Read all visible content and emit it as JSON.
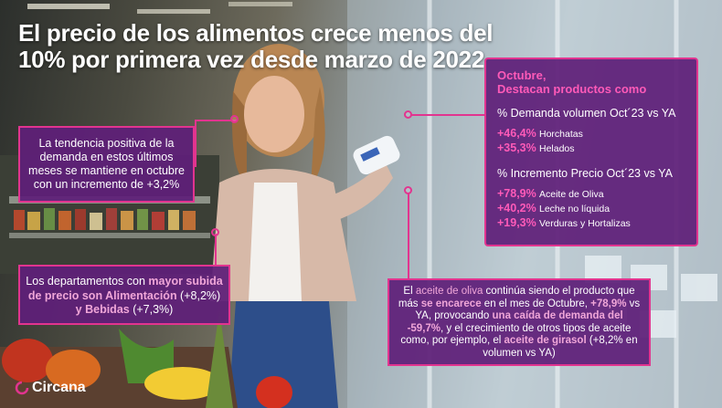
{
  "headline": {
    "line1": "El precio de los alimentos crece menos del",
    "line2": "10% por primera vez desde marzo de 2022"
  },
  "left_box_a": {
    "text": "La tendencia positiva de la demanda en estos últimos meses se mantiene en octubre con un incremento de +3,2%"
  },
  "left_box_b": {
    "prefix": "Los departamentos con ",
    "highlight1": "mayor subida de precio son Alimentación",
    "mid": " (+8,2%) ",
    "highlight2": "y Bebidas",
    "suffix": " (+7,3%)"
  },
  "right_box": {
    "title_line1": "Octubre,",
    "title_line2": "Destacan productos como",
    "section1": "% Demanda volumen Oct´23 vs YA",
    "demand_items": [
      {
        "pct": "+46,4%",
        "label": "Horchatas"
      },
      {
        "pct": "+35,3%",
        "label": "Helados"
      }
    ],
    "section2": "% Incremento Precio Oct´23 vs YA",
    "price_items": [
      {
        "pct": "+78,9%",
        "label": "Aceite de Oliva"
      },
      {
        "pct": "+40,2%",
        "label": "Leche no líquida"
      },
      {
        "pct": "+19,3%",
        "label": "Verduras y Hortalizas"
      }
    ]
  },
  "bottom_box": {
    "p1": "El ",
    "h1": "aceite de oliva",
    "p2": " continúa siendo el producto que más ",
    "h2": "se encarece",
    "p3": " en el mes de Octubre, ",
    "h3": "+78,9%",
    "p4": " vs YA, provocando ",
    "h4": "una caída de demanda del -59,7%",
    "p5": ", y el crecimiento de otros tipos de aceite como, por ejemplo, el ",
    "h5": "aceite de girasol",
    "p6": " (+8,2% en volumen vs YA)"
  },
  "brand": {
    "name": "Circana"
  },
  "colors": {
    "box_bg": "#5f1f78",
    "accent_pink": "#e2348f",
    "highlight_pink": "#ff5ab8"
  }
}
